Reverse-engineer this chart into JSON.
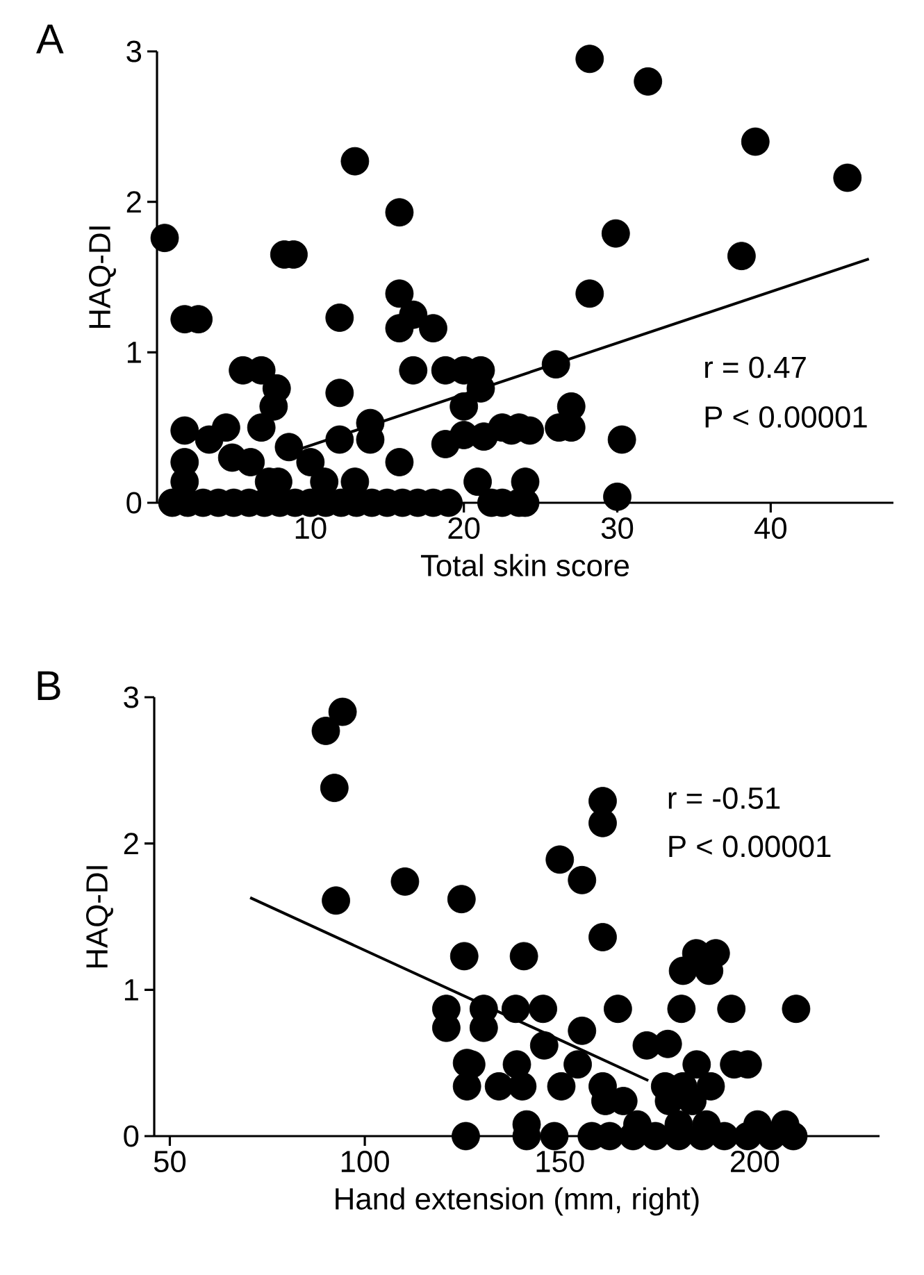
{
  "chart_data": [
    {
      "type": "scatter",
      "title": "A",
      "xlabel": "Total skin score",
      "ylabel": "HAQ-DI",
      "xlim": [
        0,
        48
      ],
      "ylim": [
        0,
        3
      ],
      "xticks": [
        10,
        20,
        30,
        40
      ],
      "yticks": [
        0,
        1,
        2,
        3
      ],
      "marker": "circle",
      "grid": false,
      "series": [
        {
          "color": "#000000",
          "x": [
            0.5,
            12.9,
            15.8,
            8.3,
            8.9,
            1.8,
            2.7,
            11.9,
            15.8,
            16.7,
            15.8,
            18,
            5.6,
            6.8,
            7.8,
            7.6,
            11.9,
            16.7,
            18.8,
            20,
            21.1,
            21.1,
            20,
            1.8,
            4.5,
            6.8,
            3.4,
            8.6,
            10,
            11.9,
            13.9,
            13.9,
            15.8,
            18.8,
            20,
            21.3,
            22.5,
            23.6,
            20.9,
            1.8,
            1.8,
            4.9,
            6.1,
            7.3,
            7.9,
            10.9,
            12.9,
            1,
            2,
            3,
            4,
            5,
            6,
            7,
            8,
            9,
            10,
            11,
            12,
            13,
            14,
            15,
            16,
            17,
            18,
            19,
            21.8,
            23.6,
            22.5,
            24,
            30,
            28.2,
            32,
            39,
            45,
            29.9,
            38.1,
            28.2,
            26,
            27,
            26.2,
            27,
            23.1,
            24.3,
            30.3,
            24
          ],
          "values": [
            1.76,
            2.27,
            1.93,
            1.65,
            1.65,
            1.22,
            1.22,
            1.23,
            1.39,
            1.25,
            1.16,
            1.16,
            0.88,
            0.88,
            0.76,
            0.64,
            0.73,
            0.88,
            0.88,
            0.88,
            0.88,
            0.76,
            0.64,
            0.48,
            0.5,
            0.5,
            0.42,
            0.37,
            0.27,
            0.42,
            0.53,
            0.42,
            0.27,
            0.39,
            0.45,
            0.44,
            0.5,
            0.5,
            0.14,
            0.27,
            0.14,
            0.3,
            0.27,
            0.14,
            0.14,
            0.14,
            0.14,
            0,
            0,
            0,
            0,
            0,
            0,
            0,
            0,
            0,
            0,
            0,
            0,
            0,
            0,
            0,
            0,
            0,
            0,
            0,
            0,
            0,
            0,
            0,
            0.04,
            2.95,
            2.8,
            2.4,
            2.16,
            1.79,
            1.64,
            1.39,
            0.92,
            0.64,
            0.5,
            0.5,
            0.48,
            0.48,
            0.42,
            0.14
          ]
        },
        {
          "type": "line",
          "color": "#000000",
          "marker": "none",
          "x": [
            8.8,
            46.4
          ],
          "values": [
            0.34,
            1.62
          ]
        }
      ],
      "annotations": [
        "r = 0.47",
        "P < 0.00001"
      ]
    },
    {
      "type": "scatter",
      "title": "B",
      "xlabel": "Hand extension (mm, right)",
      "ylabel": "HAQ-DI",
      "xlim": [
        46,
        232
      ],
      "ylim": [
        0,
        3
      ],
      "xticks": [
        50,
        100,
        150,
        200
      ],
      "yticks": [
        0,
        1,
        2,
        3
      ],
      "marker": "circle",
      "grid": false,
      "series": [
        {
          "color": "#000000",
          "x": [
            94.3,
            90,
            92.2,
            92.6,
            110.3,
            124.8,
            125.5,
            120.9,
            120.9,
            130.5,
            130.5,
            126.2,
            126.2,
            134.4,
            125.9,
            161,
            161,
            150,
            155.7,
            161,
            140.8,
            185,
            190,
            181.6,
            188.3,
            138.7,
            145.7,
            164.9,
            181.2,
            194,
            210.6,
            155.7,
            146,
            172.3,
            177.7,
            127.3,
            139,
            154.6,
            185.1,
            194.7,
            198.2,
            140.4,
            150.4,
            161,
            177,
            181.6,
            188.7,
            161.7,
            166.3,
            178,
            184,
            141.5,
            169.9,
            180.5,
            187.6,
            200.7,
            207.8,
            141.5,
            148.6,
            158.2,
            162.8,
            168.8,
            174.5,
            180.5,
            186.5,
            192.2,
            198.2,
            204.3,
            209.9
          ],
          "values": [
            2.9,
            2.77,
            2.38,
            1.61,
            1.74,
            1.62,
            1.23,
            0.87,
            0.74,
            0.87,
            0.74,
            0.5,
            0.34,
            0.34,
            0,
            2.29,
            2.14,
            1.89,
            1.75,
            1.36,
            1.23,
            1.25,
            1.25,
            1.13,
            1.13,
            0.87,
            0.87,
            0.87,
            0.87,
            0.87,
            0.87,
            0.72,
            0.62,
            0.62,
            0.63,
            0.49,
            0.49,
            0.49,
            0.49,
            0.49,
            0.49,
            0.34,
            0.34,
            0.34,
            0.34,
            0.34,
            0.34,
            0.24,
            0.24,
            0.24,
            0.24,
            0.08,
            0.08,
            0.08,
            0.08,
            0.08,
            0.08,
            0,
            0,
            0,
            0,
            0,
            0,
            0,
            0,
            0,
            0,
            0,
            0
          ]
        },
        {
          "type": "line",
          "color": "#000000",
          "marker": "none",
          "x": [
            70.6,
            172.7
          ],
          "values": [
            1.63,
            0.38
          ]
        }
      ],
      "annotations": [
        "r = -0.51",
        "P < 0.00001"
      ]
    }
  ]
}
